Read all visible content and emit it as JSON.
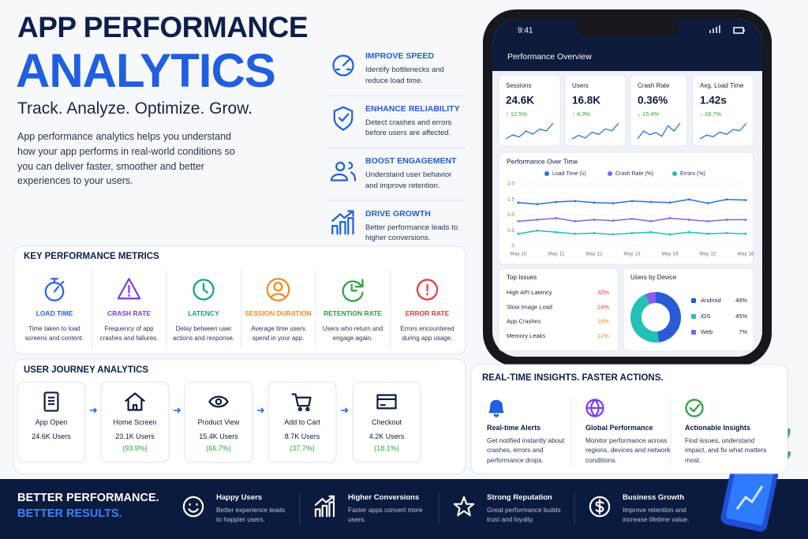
{
  "header": {
    "title_line1": "APP PERFORMANCE",
    "title_line2": "ANALYTICS",
    "tagline": "Track. Analyze. Optimize. Grow.",
    "description": "App performance analytics helps you understand how your app performs in real-world conditions so you can deliver faster, smoother and better experiences to your users."
  },
  "benefits": [
    {
      "title": "IMPROVE SPEED",
      "text": "Identify bottlenecks and reduce load time."
    },
    {
      "title": "ENHANCE RELIABILITY",
      "text": "Detect crashes and errors before users are affected."
    },
    {
      "title": "BOOST ENGAGEMENT",
      "text": "Understand user behavior and improve retention."
    },
    {
      "title": "DRIVE GROWTH",
      "text": "Better performance leads to higher conversions."
    }
  ],
  "phone": {
    "time": "9:41",
    "screen_title": "Performance Overview",
    "kpis": [
      {
        "label": "Sessions",
        "value": "24.6K",
        "change": "↑ 12.5%",
        "trend": [
          3,
          4,
          3.5,
          5,
          4.2,
          5.5,
          5,
          7
        ]
      },
      {
        "label": "Users",
        "value": "16.8K",
        "change": "↑ 8.3%",
        "trend": [
          3,
          3.8,
          3.2,
          4.5,
          4,
          5.2,
          4.8,
          6.5
        ]
      },
      {
        "label": "Crash Rate",
        "value": "0.36%",
        "change": "↓ 15.4%",
        "trend": [
          3,
          4.5,
          3.8,
          4.2,
          3.5,
          5.5,
          4.5,
          6
        ]
      },
      {
        "label": "Avg. Load Time",
        "value": "1.42s",
        "change": "↓ 18.7%",
        "trend": [
          3,
          4,
          3.6,
          4.8,
          4.2,
          5.5,
          5.2,
          7.2
        ]
      }
    ],
    "top_issues": {
      "title": "Top Issues",
      "items": [
        {
          "label": "High API Latency",
          "value": "32%",
          "color": "#e23b3b"
        },
        {
          "label": "Slow Image Load",
          "value": "24%",
          "color": "#e23b3b"
        },
        {
          "label": "App Crashes",
          "value": "18%",
          "color": "#f08a1c"
        },
        {
          "label": "Memory Leaks",
          "value": "12%",
          "color": "#f08a1c"
        }
      ]
    }
  },
  "chart_data": [
    {
      "type": "line",
      "title": "Performance Over Time",
      "categories": [
        "May 10",
        null,
        "May 11",
        null,
        "May 12",
        null,
        "May 13",
        null,
        "May 14",
        null,
        "May 15",
        null,
        "May 16"
      ],
      "series": [
        {
          "name": "Load Time (s)",
          "color": "#2f6fe0",
          "values": [
            1.4,
            1.35,
            1.42,
            1.45,
            1.4,
            1.38,
            1.45,
            1.42,
            1.4,
            1.5,
            1.38,
            1.5,
            1.48
          ]
        },
        {
          "name": "Crash Rate (%)",
          "color": "#8b5cf6",
          "values": [
            0.8,
            0.85,
            0.9,
            0.8,
            0.85,
            0.82,
            0.88,
            0.8,
            0.9,
            0.85,
            0.8,
            0.85,
            0.85
          ]
        },
        {
          "name": "Errors (%)",
          "color": "#1fbfae",
          "values": [
            0.4,
            0.5,
            0.45,
            0.4,
            0.42,
            0.38,
            0.42,
            0.45,
            0.38,
            0.45,
            0.4,
            0.42,
            0.4
          ]
        }
      ],
      "ylim": [
        0,
        2
      ],
      "yticks": [
        0,
        0.5,
        {
          "value": 1,
          "label": "1.0"
        },
        1.5,
        {
          "value": 2,
          "label": "2.0"
        }
      ],
      "grid": true
    },
    {
      "type": "donut",
      "title": "Users by Device",
      "categories": [
        "Android",
        "iOS",
        "Web"
      ],
      "values": [
        48,
        45,
        7
      ],
      "value_labels": [
        "48%",
        "45%",
        "7%"
      ],
      "colors": [
        "#2a5bd7",
        "#22c1b5",
        "#8b5cf6"
      ]
    }
  ],
  "key_metrics": {
    "title": "KEY PERFORMANCE METRICS",
    "items": [
      {
        "title": "LOAD TIME",
        "text": "Time taken to load screens and content.",
        "color": "#2563eb"
      },
      {
        "title": "CRASH RATE",
        "text": "Frequency of app crashes and failures.",
        "color": "#7c3aed"
      },
      {
        "title": "LATENCY",
        "text": "Delay between user actions and response.",
        "color": "#0f9f8f"
      },
      {
        "title": "SESSION DURATION",
        "text": "Average time users spend in your app.",
        "color": "#f08a1c"
      },
      {
        "title": "RETENTION RATE",
        "text": "Users who return and engage again.",
        "color": "#2e9e3e"
      },
      {
        "title": "ERROR RATE",
        "text": "Errors encountered during app usage.",
        "color": "#e23b3b"
      }
    ]
  },
  "user_journey": {
    "title": "USER JOURNEY ANALYTICS",
    "steps": [
      {
        "step": "App Open",
        "users": "24.6K Users"
      },
      {
        "step": "Home Screen",
        "users": "23.1K Users",
        "rate": "(93.9%)"
      },
      {
        "step": "Product View",
        "users": "15.4K Users",
        "rate": "(66.7%)"
      },
      {
        "step": "Add to Cart",
        "users": "8.7K Users",
        "rate": "(37.7%)"
      },
      {
        "step": "Checkout",
        "users": "4.2K Users",
        "rate": "(18.1%)"
      }
    ]
  },
  "insights": {
    "title": "REAL-TIME INSIGHTS. FASTER ACTIONS.",
    "items": [
      {
        "title": "Real-time Alerts",
        "text": "Get notified instantly about crashes, errors and performance drops."
      },
      {
        "title": "Global Performance",
        "text": "Monitor performance across regions, devices and network conditions."
      },
      {
        "title": "Actionable Insights",
        "text": "Find issues, understand impact, and fix what matters most."
      }
    ]
  },
  "footer": {
    "line1": "BETTER PERFORMANCE.",
    "line2": "BETTER RESULTS.",
    "items": [
      {
        "title": "Happy Users",
        "text": "Better experience leads to happier users."
      },
      {
        "title": "Higher Conversions",
        "text": "Faster apps convert more users."
      },
      {
        "title": "Strong Reputation",
        "text": "Great performance builds trust and loyalty."
      },
      {
        "title": "Business Growth",
        "text": "Improve retention and increase lifetime value."
      }
    ]
  }
}
